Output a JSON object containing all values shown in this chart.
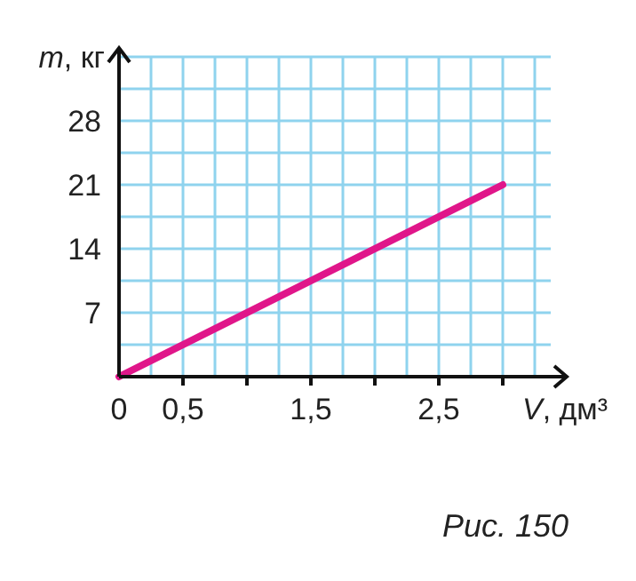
{
  "chart_data": {
    "type": "line",
    "xlabel": "V, дм³",
    "ylabel": "m, кг",
    "x": [
      0,
      3
    ],
    "series": [
      {
        "color": "#e0168a",
        "values": [
          0,
          21
        ]
      }
    ],
    "xlim": [
      0,
      3.5
    ],
    "ylim": [
      0,
      35
    ],
    "xticks": [
      0,
      {
        "value": 0.25,
        "label": null
      },
      {
        "value": 0.5,
        "label": "0,5"
      },
      {
        "value": 0.75,
        "label": null
      },
      {
        "value": 1,
        "label": null
      },
      {
        "value": 1.25,
        "label": null
      },
      {
        "value": 1.5,
        "label": "1,5"
      },
      {
        "value": 1.75,
        "label": null
      },
      {
        "value": 2,
        "label": null
      },
      {
        "value": 2.25,
        "label": null
      },
      {
        "value": 2.5,
        "label": "2,5"
      },
      {
        "value": 2.75,
        "label": null
      },
      {
        "value": 3,
        "label": null
      },
      {
        "value": 3.25,
        "label": null
      }
    ],
    "yticks": [
      {
        "value": 0,
        "label": null
      },
      {
        "value": 3.5,
        "label": null
      },
      7,
      {
        "value": 10.5,
        "label": null
      },
      14,
      {
        "value": 17.5,
        "label": null
      },
      21,
      {
        "value": 24.5,
        "label": null
      },
      28,
      {
        "value": 31.5,
        "label": null
      }
    ],
    "grid": true,
    "marker": "none",
    "line_style": "solid",
    "annotations": [
      "Рис. 150"
    ]
  }
}
